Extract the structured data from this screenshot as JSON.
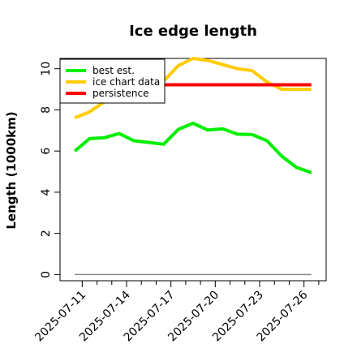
{
  "chart_data": {
    "type": "line",
    "title": "Ice edge length",
    "xlabel": "",
    "ylabel": "Length (1000km)",
    "ylim": [
      -0.3,
      10.5
    ],
    "xlim": [
      "2025-07-09T12:00",
      "2025-07-27T12:00"
    ],
    "y_ticks": [
      0,
      2,
      4,
      6,
      8,
      10
    ],
    "x_ticks": [
      "2025-07-11",
      "2025-07-14",
      "2025-07-17",
      "2025-07-20",
      "2025-07-23",
      "2025-07-26"
    ],
    "dates": [
      "2025-07-11",
      "2025-07-12",
      "2025-07-13",
      "2025-07-14",
      "2025-07-15",
      "2025-07-16",
      "2025-07-17",
      "2025-07-18",
      "2025-07-19",
      "2025-07-20",
      "2025-07-21",
      "2025-07-22",
      "2025-07-23",
      "2025-07-24",
      "2025-07-25",
      "2025-07-26",
      "2025-07-27"
    ],
    "series": [
      {
        "name": "best est.",
        "color": "#00ee00",
        "x": [
          "2025-07-10T12:00",
          "2025-07-11T12:00",
          "2025-07-12T12:00",
          "2025-07-13T12:00",
          "2025-07-14T12:00",
          "2025-07-15T12:00",
          "2025-07-16T12:00",
          "2025-07-17T12:00",
          "2025-07-18T12:00",
          "2025-07-19T12:00",
          "2025-07-20T12:00",
          "2025-07-21T12:00",
          "2025-07-22T12:00",
          "2025-07-23T12:00",
          "2025-07-24T12:00",
          "2025-07-25T12:00",
          "2025-07-26T12:00"
        ],
        "values": [
          6.0,
          6.6,
          6.65,
          6.85,
          6.5,
          6.42,
          6.33,
          7.05,
          7.35,
          7.02,
          7.08,
          6.82,
          6.8,
          6.5,
          5.75,
          5.2,
          4.95
        ]
      },
      {
        "name": "ice chart data",
        "color": "#ffcc00",
        "x": [
          "2025-07-10T12:00",
          "2025-07-11T12:00",
          "2025-07-12T12:00",
          "2025-07-13T12:00",
          "2025-07-14T12:00",
          "2025-07-15T12:00",
          "2025-07-16T12:00",
          "2025-07-17T12:00",
          "2025-07-18T12:00",
          "2025-07-19T12:00",
          "2025-07-20T12:00",
          "2025-07-21T12:00",
          "2025-07-22T12:00",
          "2025-07-23T12:00",
          "2025-07-24T12:00",
          "2025-07-25T12:00",
          "2025-07-26T12:00"
        ],
        "values": [
          7.62,
          7.9,
          8.4,
          8.85,
          9.05,
          9.25,
          9.4,
          10.15,
          10.5,
          10.4,
          10.2,
          10.0,
          9.9,
          9.35,
          9.0,
          9.0,
          9.0
        ]
      },
      {
        "name": "persistence",
        "color": "#ff0000",
        "x": [
          "2025-07-10T12:00",
          "2025-07-26T12:00"
        ],
        "values": [
          9.22,
          9.22
        ]
      },
      {
        "color": "#888888",
        "x": [
          "2025-07-10T12:00",
          "2025-07-26T12:00"
        ],
        "values": [
          0,
          0
        ]
      }
    ],
    "legend": {
      "placement": "top-left"
    },
    "grid": false
  }
}
